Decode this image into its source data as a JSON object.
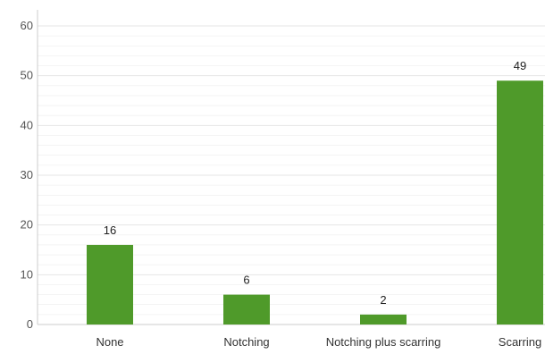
{
  "chart_data": {
    "type": "bar",
    "categories": [
      "None",
      "Notching",
      "Notching plus scarring",
      "Scarring"
    ],
    "values": [
      16,
      6,
      2,
      49
    ],
    "data_labels": [
      "16",
      "6",
      "2",
      "49"
    ],
    "ylim": [
      0,
      60
    ],
    "yticks": [
      "0",
      "10",
      "20",
      "30",
      "40",
      "50",
      "60"
    ],
    "grid": true,
    "bar_color": "#4f9a2a",
    "grid_color": "#e6e6e6",
    "axis_color": "#cccccc"
  }
}
